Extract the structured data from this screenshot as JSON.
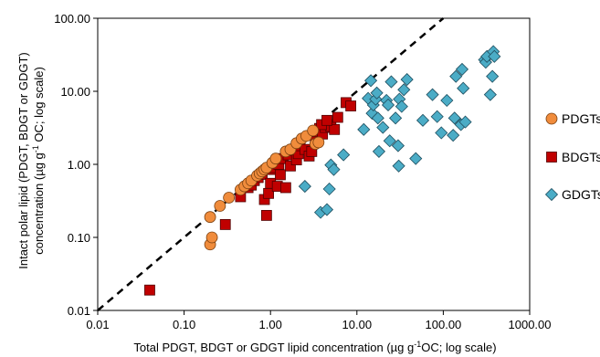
{
  "chart_data": {
    "type": "scatter",
    "x_scale": "log",
    "y_scale": "log",
    "xlim": [
      0.01,
      1000
    ],
    "ylim": [
      0.01,
      100
    ],
    "x_ticks": [
      0.01,
      0.1,
      1,
      10,
      100,
      1000
    ],
    "x_tick_labels": [
      "0.01",
      "0.10",
      "1.00",
      "10.00",
      "100.00",
      "1000.00"
    ],
    "y_ticks": [
      0.01,
      0.1,
      1,
      10,
      100
    ],
    "y_tick_labels": [
      "0.01",
      "0.10",
      "1.00",
      "10.00",
      "100.00"
    ],
    "xlabel": {
      "pre": "Total PDGT, BDGT or GDGT lipid concentration (µg g",
      "sup": "-1",
      "post": "OC; log scale)"
    },
    "ylabel": {
      "line1": "Intact polar lipid (PDGT, BDGT or GDGT)",
      "line2_pre": "concentration (µg g",
      "line2_sup": "-1",
      "line2_post": " OC; log scale)"
    },
    "grid": false,
    "legend_position": "right",
    "reference_line": {
      "style": "dashed",
      "description": "1:1",
      "color": "#000000"
    },
    "series": [
      {
        "name": "PDGTs",
        "marker": "circle",
        "color": "#F08C3C",
        "edge": "#7A4010",
        "points": [
          [
            0.2,
            0.08
          ],
          [
            0.21,
            0.1
          ],
          [
            0.2,
            0.19
          ],
          [
            0.26,
            0.27
          ],
          [
            0.33,
            0.35
          ],
          [
            0.45,
            0.45
          ],
          [
            0.5,
            0.5
          ],
          [
            0.55,
            0.55
          ],
          [
            0.6,
            0.6
          ],
          [
            0.7,
            0.7
          ],
          [
            0.75,
            0.75
          ],
          [
            0.8,
            0.8
          ],
          [
            0.85,
            0.85
          ],
          [
            0.9,
            0.9
          ],
          [
            1.05,
            1.05
          ],
          [
            1.15,
            1.2
          ],
          [
            1.5,
            1.5
          ],
          [
            1.7,
            1.6
          ],
          [
            2.0,
            1.95
          ],
          [
            2.3,
            2.25
          ],
          [
            2.6,
            2.45
          ],
          [
            3.1,
            2.9
          ],
          [
            3.3,
            1.9
          ],
          [
            3.6,
            2.0
          ]
        ]
      },
      {
        "name": "BDGTs",
        "marker": "square",
        "color": "#C00000",
        "edge": "#500000",
        "points": [
          [
            0.04,
            0.019
          ],
          [
            0.3,
            0.15
          ],
          [
            0.45,
            0.36
          ],
          [
            0.55,
            0.48
          ],
          [
            0.6,
            0.52
          ],
          [
            0.65,
            0.6
          ],
          [
            0.72,
            0.66
          ],
          [
            0.8,
            0.73
          ],
          [
            0.85,
            0.33
          ],
          [
            0.9,
            0.2
          ],
          [
            0.95,
            0.4
          ],
          [
            1.0,
            0.55
          ],
          [
            1.05,
            0.85
          ],
          [
            1.1,
            0.9
          ],
          [
            1.2,
            0.5
          ],
          [
            1.25,
            1.0
          ],
          [
            1.3,
            0.72
          ],
          [
            1.4,
            1.2
          ],
          [
            1.5,
            0.48
          ],
          [
            1.6,
            1.35
          ],
          [
            1.7,
            0.95
          ],
          [
            1.8,
            1.55
          ],
          [
            2.0,
            1.15
          ],
          [
            2.1,
            1.4
          ],
          [
            2.2,
            1.8
          ],
          [
            2.5,
            1.6
          ],
          [
            2.8,
            1.3
          ],
          [
            3.0,
            1.5
          ],
          [
            3.3,
            2.2
          ],
          [
            3.5,
            2.8
          ],
          [
            3.7,
            3.1
          ],
          [
            4.0,
            2.6
          ],
          [
            4.3,
            3.2
          ],
          [
            4.6,
            3.5
          ],
          [
            5.0,
            3.3
          ],
          [
            5.5,
            3.0
          ],
          [
            6.0,
            4.4
          ],
          [
            7.5,
            7.0
          ],
          [
            8.5,
            6.3
          ],
          [
            3.9,
            3.5
          ],
          [
            4.5,
            4.0
          ]
        ]
      },
      {
        "name": "GDGTs",
        "marker": "diamond",
        "color": "#4BACC6",
        "edge": "#1F4E5F",
        "points": [
          [
            2.5,
            0.5
          ],
          [
            3.8,
            0.22
          ],
          [
            4.5,
            0.24
          ],
          [
            4.8,
            0.46
          ],
          [
            5.0,
            0.98
          ],
          [
            5.4,
            0.85
          ],
          [
            7.0,
            1.35
          ],
          [
            12.0,
            3.0
          ],
          [
            13.5,
            8.0
          ],
          [
            14.5,
            14.0
          ],
          [
            15.0,
            5.0
          ],
          [
            15.5,
            6.5
          ],
          [
            16.5,
            7.8
          ],
          [
            17.0,
            9.5
          ],
          [
            17.5,
            4.3
          ],
          [
            18.0,
            1.5
          ],
          [
            20.0,
            3.2
          ],
          [
            22.0,
            7.5
          ],
          [
            23.0,
            6.5
          ],
          [
            24.0,
            2.1
          ],
          [
            25.0,
            13.5
          ],
          [
            28.0,
            4.3
          ],
          [
            30.0,
            1.8
          ],
          [
            30.5,
            0.95
          ],
          [
            31.0,
            7.8
          ],
          [
            33.0,
            6.2
          ],
          [
            35.0,
            10.5
          ],
          [
            38.0,
            14.5
          ],
          [
            48.0,
            1.2
          ],
          [
            58.0,
            4.0
          ],
          [
            75.0,
            9.0
          ],
          [
            85.0,
            4.5
          ],
          [
            95.0,
            2.7
          ],
          [
            110.0,
            7.5
          ],
          [
            130.0,
            2.5
          ],
          [
            135.0,
            4.3
          ],
          [
            140.0,
            16.0
          ],
          [
            160.0,
            3.5
          ],
          [
            165.0,
            20.0
          ],
          [
            170.0,
            11.0
          ],
          [
            180.0,
            3.8
          ],
          [
            300.0,
            27.0
          ],
          [
            310.0,
            25.0
          ],
          [
            320.0,
            30.0
          ],
          [
            350.0,
            9.0
          ],
          [
            370.0,
            16.0
          ],
          [
            380.0,
            35.0
          ],
          [
            390.0,
            30.0
          ]
        ]
      }
    ]
  }
}
